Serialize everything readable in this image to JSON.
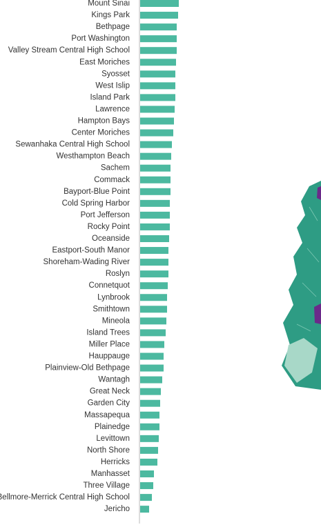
{
  "chart_data": {
    "type": "barh",
    "categories": [
      "Mount Sinai",
      "Kings Park",
      "Bethpage",
      "Port Washington",
      "Valley Stream Central High School",
      "East Moriches",
      "Syosset",
      "West Islip",
      "Island Park",
      "Lawrence",
      "Hampton Bays",
      "Center Moriches",
      "Sewanhaka Central High School",
      "Westhampton Beach",
      "Sachem",
      "Commack",
      "Bayport-Blue Point",
      "Cold Spring Harbor",
      "Port Jefferson",
      "Rocky Point",
      "Oceanside",
      "Eastport-South Manor",
      "Shoreham-Wading River",
      "Roslyn",
      "Connetquot",
      "Lynbrook",
      "Smithtown",
      "Mineola",
      "Island Trees",
      "Miller Place",
      "Hauppauge",
      "Plainview-Old Bethpage",
      "Wantagh",
      "Great Neck",
      "Garden City",
      "Massapequa",
      "Plainedge",
      "Levittown",
      "North Shore",
      "Herricks",
      "Manhasset",
      "Three Village",
      "Bellmore-Merrick Central High School",
      "Jericho"
    ],
    "values": [
      56,
      55,
      53,
      53,
      53,
      52,
      51,
      51,
      51,
      50,
      49,
      48,
      46,
      45,
      44,
      44,
      44,
      43,
      43,
      43,
      42,
      41,
      41,
      41,
      40,
      39,
      39,
      38,
      37,
      35,
      34,
      34,
      32,
      30,
      29,
      28,
      28,
      27,
      26,
      25,
      20,
      19,
      17,
      13
    ],
    "color": "#4cb9a0",
    "xlim": [
      0,
      60
    ]
  }
}
